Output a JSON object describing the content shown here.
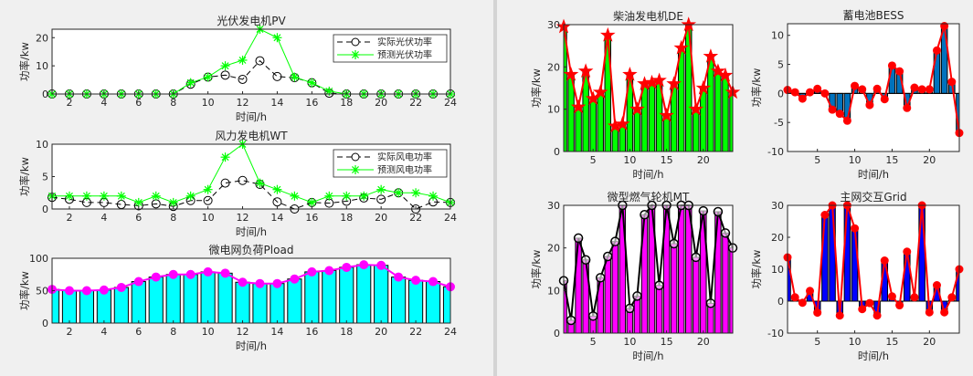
{
  "chart_data": [
    {
      "id": "pv",
      "type": "line",
      "title": "光伏发电机PV",
      "xlabel": "时间/h",
      "ylabel": "功率/kw",
      "xlim": [
        1,
        24
      ],
      "ylim": [
        0,
        23
      ],
      "xticks": [
        2,
        4,
        6,
        8,
        10,
        12,
        14,
        16,
        18,
        20,
        22,
        24
      ],
      "yticks": [
        0,
        10,
        20
      ],
      "grid": false,
      "legend_position": "top-right",
      "x": [
        1,
        2,
        3,
        4,
        5,
        6,
        7,
        8,
        9,
        10,
        11,
        12,
        13,
        14,
        15,
        16,
        17,
        18,
        19,
        20,
        21,
        22,
        23,
        24
      ],
      "series": [
        {
          "name": "实际光伏功率",
          "style": "dashed-circle",
          "color": "#000000",
          "values": [
            0,
            0,
            0,
            0,
            0,
            0,
            0,
            0,
            3.5,
            6,
            6.7,
            5.2,
            11.8,
            6.2,
            5.8,
            4,
            0.3,
            0,
            0,
            0,
            0,
            0,
            0,
            0
          ]
        },
        {
          "name": "预测光伏功率",
          "style": "solid-star",
          "color": "#00ff00",
          "values": [
            0,
            0,
            0,
            0,
            0,
            0,
            0,
            0,
            4,
            6,
            10,
            12,
            23,
            20,
            6,
            4,
            1,
            0,
            0,
            0,
            0,
            0,
            0,
            0
          ]
        }
      ]
    },
    {
      "id": "wt",
      "type": "line",
      "title": "风力发电机WT",
      "xlabel": "时间/h",
      "ylabel": "功率/kw",
      "xlim": [
        1,
        24
      ],
      "ylim": [
        0,
        10
      ],
      "xticks": [
        2,
        4,
        6,
        8,
        10,
        12,
        14,
        16,
        18,
        20,
        22,
        24
      ],
      "yticks": [
        0,
        5,
        10
      ],
      "grid": false,
      "legend_position": "top-right",
      "x": [
        1,
        2,
        3,
        4,
        5,
        6,
        7,
        8,
        9,
        10,
        11,
        12,
        13,
        14,
        15,
        16,
        17,
        18,
        19,
        20,
        21,
        22,
        23,
        24
      ],
      "series": [
        {
          "name": "实际风电功率",
          "style": "dashed-circle",
          "color": "#000000",
          "values": [
            1.8,
            1.5,
            1,
            1,
            0.7,
            0.5,
            0.8,
            0.4,
            1.3,
            1.3,
            4,
            4.4,
            3.8,
            1.1,
            0,
            1,
            0.9,
            1.2,
            1.7,
            1.5,
            2.5,
            0,
            1.1,
            1
          ]
        },
        {
          "name": "预测风电功率",
          "style": "solid-star",
          "color": "#00ff00",
          "values": [
            2,
            2,
            2,
            2,
            2,
            1,
            2,
            1,
            2,
            3,
            8,
            10,
            4,
            3,
            2,
            1,
            2,
            2,
            2,
            3,
            2.5,
            2.5,
            2,
            1
          ]
        }
      ]
    },
    {
      "id": "load",
      "type": "bar",
      "title": "微电网负荷Pload",
      "xlabel": "时间/h",
      "ylabel": "功率/kw",
      "xlim": [
        1,
        24
      ],
      "ylim": [
        0,
        100
      ],
      "xticks": [
        2,
        4,
        6,
        8,
        10,
        12,
        14,
        16,
        18,
        20,
        22,
        24
      ],
      "yticks": [
        0,
        50,
        100
      ],
      "grid": false,
      "x": [
        1,
        2,
        3,
        4,
        5,
        6,
        7,
        8,
        9,
        10,
        11,
        12,
        13,
        14,
        15,
        16,
        17,
        18,
        19,
        20,
        21,
        22,
        23,
        24
      ],
      "bar_color": "#00ffff",
      "line_color": "#ff00ff",
      "marker": "filled-circle",
      "values": [
        52,
        50,
        50,
        51,
        55,
        64,
        71,
        75,
        75,
        79,
        77,
        63,
        61,
        61,
        68,
        79,
        81,
        86,
        90,
        89,
        71,
        66,
        64,
        56
      ]
    },
    {
      "id": "de",
      "type": "bar",
      "title": "柴油发电机DE",
      "xlabel": "时间/h",
      "ylabel": "功率/kw",
      "xlim": [
        1,
        24
      ],
      "ylim": [
        0,
        30
      ],
      "xticks": [
        5,
        10,
        15,
        20
      ],
      "yticks": [
        0,
        10,
        20,
        30
      ],
      "grid": false,
      "x": [
        1,
        2,
        3,
        4,
        5,
        6,
        7,
        8,
        9,
        10,
        11,
        12,
        13,
        14,
        15,
        16,
        17,
        18,
        19,
        20,
        21,
        22,
        23,
        24
      ],
      "bar_color": "#00ff00",
      "line_color": "#ff0000",
      "marker": "pentagram",
      "values": [
        29.5,
        18.2,
        10.5,
        19,
        12.5,
        14,
        27.5,
        6,
        6.5,
        18.2,
        10,
        16,
        16.3,
        16.8,
        8.5,
        16,
        24.5,
        30,
        10,
        15,
        22.5,
        19,
        18,
        14
      ]
    },
    {
      "id": "bess",
      "type": "bar",
      "title": "蓄电池BESS",
      "xlabel": "时间/h",
      "ylabel": "功率/kw",
      "xlim": [
        1,
        24
      ],
      "ylim": [
        -10,
        12
      ],
      "xticks": [
        5,
        10,
        15,
        20
      ],
      "yticks": [
        -10,
        -5,
        0,
        5,
        10
      ],
      "grid": false,
      "x": [
        1,
        2,
        3,
        4,
        5,
        6,
        7,
        8,
        9,
        10,
        11,
        12,
        13,
        14,
        15,
        16,
        17,
        18,
        19,
        20,
        21,
        22,
        23,
        24
      ],
      "bar_color": "#0072bd",
      "line_color": "#ff0000",
      "marker": "filled-circle",
      "values": [
        0.6,
        0.2,
        -0.9,
        0.2,
        0.8,
        0,
        -2.8,
        -3.5,
        -4.7,
        1.3,
        0.7,
        -2,
        0.8,
        -1,
        4.8,
        3.8,
        -2.5,
        1,
        0.7,
        0.7,
        7.4,
        11.6,
        2,
        -6.8
      ]
    },
    {
      "id": "mt",
      "type": "bar",
      "title": "微型燃气轮机MT",
      "xlabel": "时间/h",
      "ylabel": "功率/kw",
      "xlim": [
        1,
        24
      ],
      "ylim": [
        0,
        30
      ],
      "xticks": [
        5,
        10,
        15,
        20
      ],
      "yticks": [
        0,
        10,
        20,
        30
      ],
      "grid": false,
      "x": [
        1,
        2,
        3,
        4,
        5,
        6,
        7,
        8,
        9,
        10,
        11,
        12,
        13,
        14,
        15,
        16,
        17,
        18,
        19,
        20,
        21,
        22,
        23,
        24
      ],
      "bar_color": "#ff00ff",
      "line_color": "#000000",
      "marker": "open-circle",
      "values": [
        12.3,
        3,
        22.3,
        17.2,
        4,
        13,
        18,
        21.5,
        30,
        5.8,
        8.7,
        27.8,
        30,
        11.2,
        30,
        21,
        30,
        30,
        17.8,
        28.7,
        7,
        28.5,
        23.5,
        20
      ]
    },
    {
      "id": "grid",
      "type": "bar",
      "title": "主网交互Grid",
      "xlabel": "时间/h",
      "ylabel": "功率/kw",
      "xlim": [
        1,
        24
      ],
      "ylim": [
        -10,
        30
      ],
      "xticks": [
        5,
        10,
        15,
        20
      ],
      "yticks": [
        -10,
        0,
        10,
        20,
        30
      ],
      "grid": false,
      "x": [
        1,
        2,
        3,
        4,
        5,
        6,
        7,
        8,
        9,
        10,
        11,
        12,
        13,
        14,
        15,
        16,
        17,
        18,
        19,
        20,
        21,
        22,
        23,
        24
      ],
      "bar_color": "#0000ff",
      "line_color": "#ff0000",
      "marker": "filled-circle",
      "values": [
        13.7,
        1.2,
        -0.5,
        3.2,
        -3.6,
        27,
        30,
        -4.5,
        30,
        22.8,
        -2.5,
        -0.6,
        -4.5,
        12.7,
        1.5,
        -1.3,
        15.5,
        1.2,
        30,
        -3.5,
        5,
        -3.5,
        1.2,
        10
      ]
    }
  ]
}
